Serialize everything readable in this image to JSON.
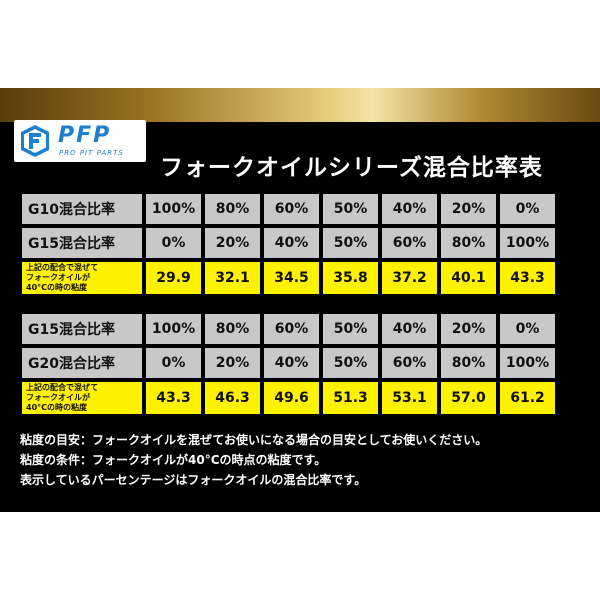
{
  "brand": {
    "logo_text": "PFP",
    "logo_sub": "PRO PIT PARTS",
    "colors": {
      "logo_blue": "#1d7fd0",
      "panel": "#000000",
      "cell_gray": "#c8c8c8",
      "highlight_yellow": "#fff200"
    }
  },
  "title": "フォークオイルシリーズ混合比率表",
  "table1": {
    "rows": [
      {
        "label": "G10混合比率",
        "values": [
          "100%",
          "80%",
          "60%",
          "50%",
          "40%",
          "20%",
          "0%"
        ]
      },
      {
        "label": "G15混合比率",
        "values": [
          "0%",
          "20%",
          "40%",
          "50%",
          "60%",
          "80%",
          "100%"
        ]
      },
      {
        "label": "上記の配合で混ぜて\nフォークオイルが\n40°Cの時の粘度",
        "values": [
          "29.9",
          "32.1",
          "34.5",
          "35.8",
          "37.2",
          "40.1",
          "43.3"
        ]
      }
    ]
  },
  "table2": {
    "rows": [
      {
        "label": "G15混合比率",
        "values": [
          "100%",
          "80%",
          "60%",
          "50%",
          "40%",
          "20%",
          "0%"
        ]
      },
      {
        "label": "G20混合比率",
        "values": [
          "0%",
          "20%",
          "40%",
          "50%",
          "60%",
          "80%",
          "100%"
        ]
      },
      {
        "label": "上記の配合で混ぜて\nフォークオイルが\n40°Cの時の粘度",
        "values": [
          "43.3",
          "46.3",
          "49.6",
          "51.3",
          "53.1",
          "57.0",
          "61.2"
        ]
      }
    ]
  },
  "notes": [
    "粘度の目安：フォークオイルを混ぜてお使いになる場合の目安としてお使いください。",
    "粘度の条件：フォークオイルが40°Cの時点の粘度です。",
    "表示しているパーセンテージはフォークオイルの混合比率です。"
  ]
}
